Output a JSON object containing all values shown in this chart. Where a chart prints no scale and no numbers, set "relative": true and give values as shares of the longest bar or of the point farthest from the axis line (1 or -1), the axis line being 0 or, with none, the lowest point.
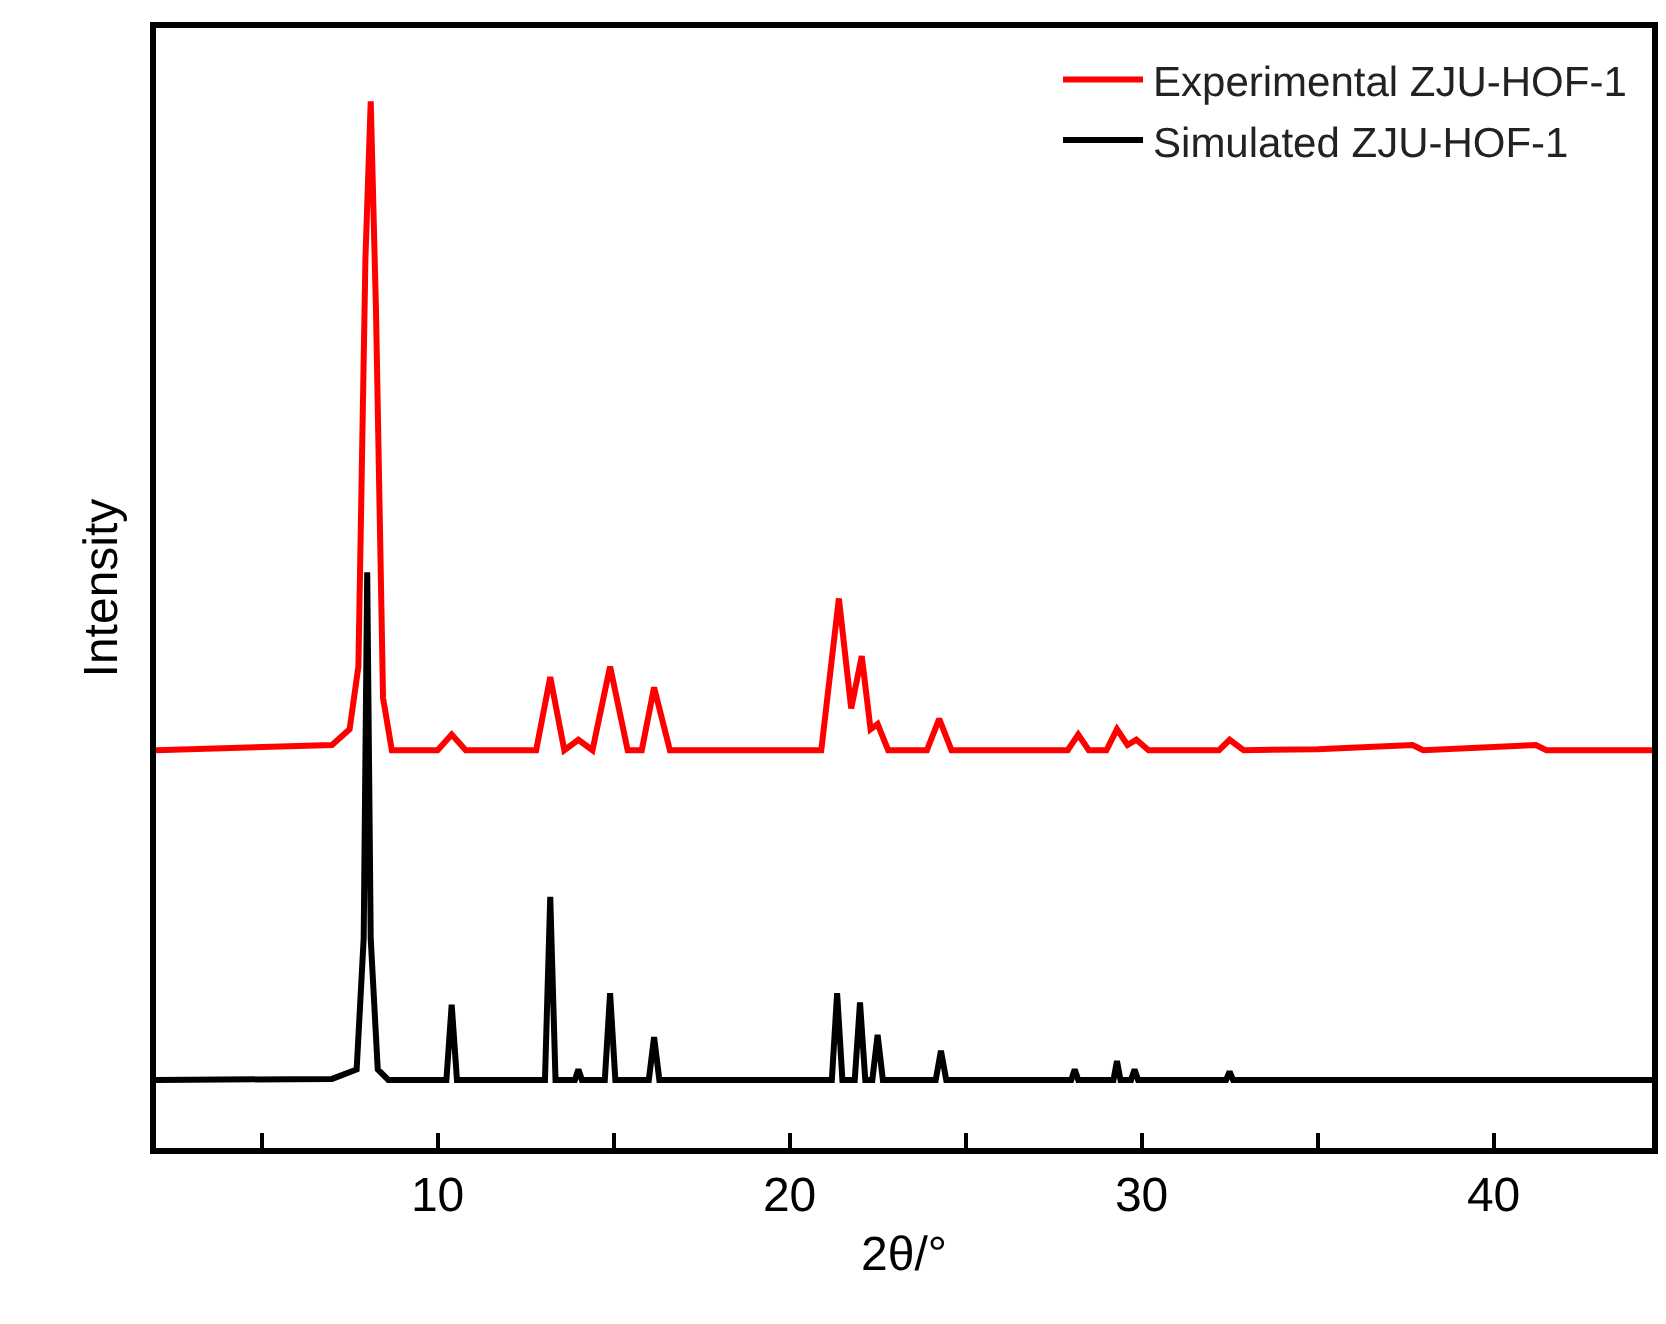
{
  "chart_data": {
    "type": "line",
    "xlabel": "2θ/°",
    "ylabel": "Intensity",
    "relative": true,
    "legend": "top right",
    "marker": "none",
    "line_style": "solid",
    "xlim": [
      2,
      44.5
    ],
    "xticks": [
      {
        "value": 5,
        "label": null
      },
      10,
      {
        "value": 15,
        "label": null
      },
      20,
      {
        "value": 25,
        "label": null
      },
      30,
      {
        "value": 35,
        "label": null
      },
      40
    ],
    "series": [
      {
        "name": "Experimental ZJU-HOF-1",
        "color": "#ff0000",
        "x": [
          2,
          7.0,
          7.5,
          7.75,
          7.95,
          8.1,
          8.25,
          8.45,
          8.7,
          10.0,
          10.4,
          10.8,
          12.8,
          13.2,
          13.6,
          14.0,
          14.4,
          14.9,
          15.4,
          15.8,
          16.15,
          16.6,
          19.4,
          19.6,
          20.9,
          21.4,
          21.75,
          22.05,
          22.3,
          22.5,
          22.8,
          23.9,
          24.25,
          24.6,
          27.9,
          28.2,
          28.5,
          29.0,
          29.3,
          29.6,
          29.85,
          30.2,
          32.2,
          32.5,
          32.9,
          35.0,
          37.7,
          38.0,
          41.2,
          41.5,
          44.5
        ],
        "values": [
          0.38,
          0.385,
          0.4,
          0.46,
          0.85,
          1.0,
          0.8,
          0.43,
          0.38,
          0.38,
          0.395,
          0.38,
          0.38,
          0.45,
          0.38,
          0.39,
          0.38,
          0.46,
          0.38,
          0.38,
          0.44,
          0.38,
          0.38,
          0.38,
          0.38,
          0.525,
          0.42,
          0.47,
          0.4,
          0.405,
          0.38,
          0.38,
          0.41,
          0.38,
          0.38,
          0.395,
          0.38,
          0.38,
          0.4,
          0.385,
          0.39,
          0.38,
          0.38,
          0.39,
          0.38,
          0.381,
          0.385,
          0.38,
          0.385,
          0.38,
          0.38
        ]
      },
      {
        "name": "Simulated ZJU-HOF-1",
        "color": "#000000",
        "x": [
          2,
          7.0,
          7.7,
          7.9,
          8.0,
          8.1,
          8.3,
          8.6,
          10.25,
          10.4,
          10.55,
          13.05,
          13.2,
          13.35,
          13.9,
          14.0,
          14.1,
          14.75,
          14.9,
          15.05,
          16.0,
          16.15,
          16.3,
          21.2,
          21.35,
          21.5,
          21.85,
          22.0,
          22.15,
          22.35,
          22.5,
          22.65,
          24.15,
          24.3,
          24.45,
          28.0,
          28.1,
          28.2,
          29.2,
          29.3,
          29.4,
          29.7,
          29.8,
          29.9,
          32.4,
          32.5,
          32.6,
          44.5
        ],
        "values": [
          0.065,
          0.066,
          0.075,
          0.2,
          0.55,
          0.2,
          0.075,
          0.065,
          0.065,
          0.137,
          0.065,
          0.065,
          0.24,
          0.065,
          0.065,
          0.075,
          0.065,
          0.065,
          0.148,
          0.065,
          0.065,
          0.106,
          0.065,
          0.065,
          0.148,
          0.065,
          0.065,
          0.139,
          0.065,
          0.065,
          0.108,
          0.065,
          0.065,
          0.093,
          0.065,
          0.065,
          0.075,
          0.065,
          0.065,
          0.083,
          0.065,
          0.065,
          0.075,
          0.065,
          0.065,
          0.073,
          0.065,
          0.065
        ]
      }
    ]
  }
}
